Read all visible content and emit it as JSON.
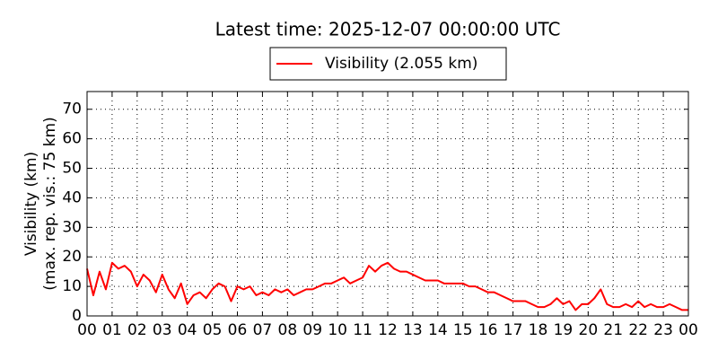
{
  "chart_data": {
    "type": "line",
    "title": "Latest time: 2025-12-07 00:00:00 UTC",
    "y_label": [
      "Visibility (km)",
      "(max. rep. vis.: 75 km)"
    ],
    "x": [
      0,
      0.25,
      0.5,
      0.75,
      1,
      1.25,
      1.5,
      1.75,
      2,
      2.25,
      2.5,
      2.75,
      3,
      3.25,
      3.5,
      3.75,
      4,
      4.25,
      4.5,
      4.75,
      5,
      5.25,
      5.5,
      5.75,
      6,
      6.25,
      6.5,
      6.75,
      7,
      7.25,
      7.5,
      7.75,
      8,
      8.25,
      8.5,
      8.75,
      9,
      9.25,
      9.5,
      9.75,
      10,
      10.25,
      10.5,
      10.75,
      11,
      11.25,
      11.5,
      11.75,
      12,
      12.25,
      12.5,
      12.75,
      13,
      13.25,
      13.5,
      13.75,
      14,
      14.25,
      14.5,
      14.75,
      15,
      15.25,
      15.5,
      15.75,
      16,
      16.25,
      16.5,
      16.75,
      17,
      17.25,
      17.5,
      17.75,
      18,
      18.25,
      18.5,
      18.75,
      19,
      19.25,
      19.5,
      19.75,
      20,
      20.25,
      20.5,
      20.75,
      21,
      21.25,
      21.5,
      21.75,
      22,
      22.25,
      22.5,
      22.75,
      23,
      23.25,
      23.5,
      23.75,
      24
    ],
    "series": [
      {
        "name": "Visibility (2.055 km)",
        "color": "#ff0000",
        "values": [
          16,
          7,
          15,
          9,
          18,
          16,
          17,
          15,
          10,
          14,
          12,
          8,
          14,
          9,
          6,
          11,
          4,
          7,
          8,
          6,
          9,
          11,
          10,
          5,
          10,
          9,
          10,
          7,
          8,
          7,
          9,
          8,
          9,
          7,
          8,
          9,
          9,
          10,
          11,
          11,
          12,
          13,
          11,
          12,
          13,
          17,
          15,
          17,
          18,
          16,
          15,
          15,
          14,
          13,
          12,
          12,
          12,
          11,
          11,
          11,
          11,
          10,
          10,
          9,
          8,
          8,
          7,
          6,
          5,
          5,
          5,
          4,
          3,
          3,
          4,
          6,
          4,
          5,
          2,
          4,
          4,
          6,
          9,
          4,
          3,
          3,
          4,
          3,
          5,
          3,
          4,
          3,
          3,
          4,
          3,
          2,
          2
        ]
      }
    ],
    "xlim": [
      0,
      24
    ],
    "xticks": [
      {
        "value": 0,
        "label": "00"
      },
      {
        "value": 1,
        "label": "01"
      },
      {
        "value": 2,
        "label": "02"
      },
      {
        "value": 3,
        "label": "03"
      },
      {
        "value": 4,
        "label": "04"
      },
      {
        "value": 5,
        "label": "05"
      },
      {
        "value": 6,
        "label": "06"
      },
      {
        "value": 7,
        "label": "07"
      },
      {
        "value": 8,
        "label": "08"
      },
      {
        "value": 9,
        "label": "09"
      },
      {
        "value": 10,
        "label": "10"
      },
      {
        "value": 11,
        "label": "11"
      },
      {
        "value": 12,
        "label": "12"
      },
      {
        "value": 13,
        "label": "13"
      },
      {
        "value": 14,
        "label": "14"
      },
      {
        "value": 15,
        "label": "15"
      },
      {
        "value": 16,
        "label": "16"
      },
      {
        "value": 17,
        "label": "17"
      },
      {
        "value": 18,
        "label": "18"
      },
      {
        "value": 19,
        "label": "19"
      },
      {
        "value": 20,
        "label": "20"
      },
      {
        "value": 21,
        "label": "21"
      },
      {
        "value": 22,
        "label": "22"
      },
      {
        "value": 23,
        "label": "23"
      },
      {
        "value": 24,
        "label": "00"
      }
    ],
    "ylim": [
      0,
      76
    ],
    "yticks": [
      0,
      10,
      20,
      30,
      40,
      50,
      60,
      70
    ],
    "grid": true
  }
}
